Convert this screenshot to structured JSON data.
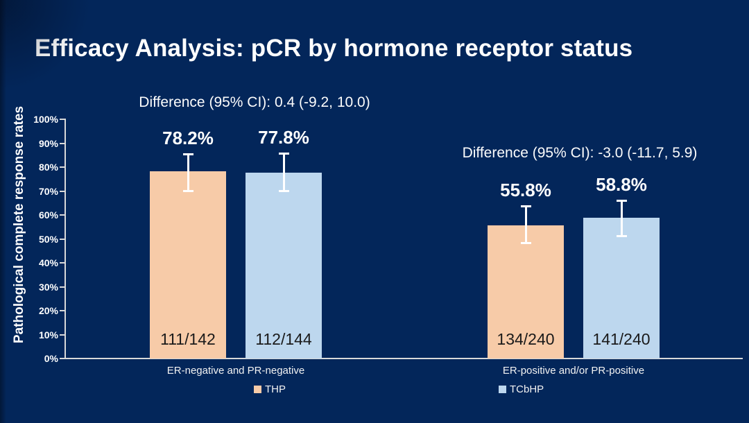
{
  "chart_data": {
    "type": "bar",
    "title": "Efficacy Analysis: pCR by hormone receptor status",
    "ylabel": "Pathological complete response rates",
    "xlabel": "",
    "ylim": [
      0,
      100
    ],
    "ytick_step": 10,
    "ytick_suffix": "%",
    "grid": false,
    "legend_position": "bottom",
    "background_color": "#03265A",
    "axis_color": "#D9D9D9",
    "error_bar_color": "#FFFFFF",
    "categories": [
      "ER-negative and PR-negative",
      "ER-positive and/or PR-positive"
    ],
    "series": [
      {
        "name": "THP",
        "color": "#F7CBA8",
        "values": [
          78.2,
          55.8
        ],
        "value_labels": [
          "78.2%",
          "55.8%"
        ],
        "count_labels": [
          "111/142",
          "134/240"
        ],
        "ci": [
          [
            70.0,
            85.5
          ],
          [
            48.1,
            63.8
          ]
        ]
      },
      {
        "name": "TCbHP",
        "color": "#BDD7EE",
        "values": [
          77.8,
          58.8
        ],
        "value_labels": [
          "77.8%",
          "58.8%"
        ],
        "count_labels": [
          "112/144",
          "141/240"
        ],
        "ci": [
          [
            69.9,
            85.8
          ],
          [
            51.0,
            66.1
          ]
        ]
      }
    ],
    "annotations": [
      "Difference (95% CI): 0.4 (-9.2, 10.0)",
      "Difference (95% CI): -3.0 (-11.7, 5.9)"
    ]
  }
}
